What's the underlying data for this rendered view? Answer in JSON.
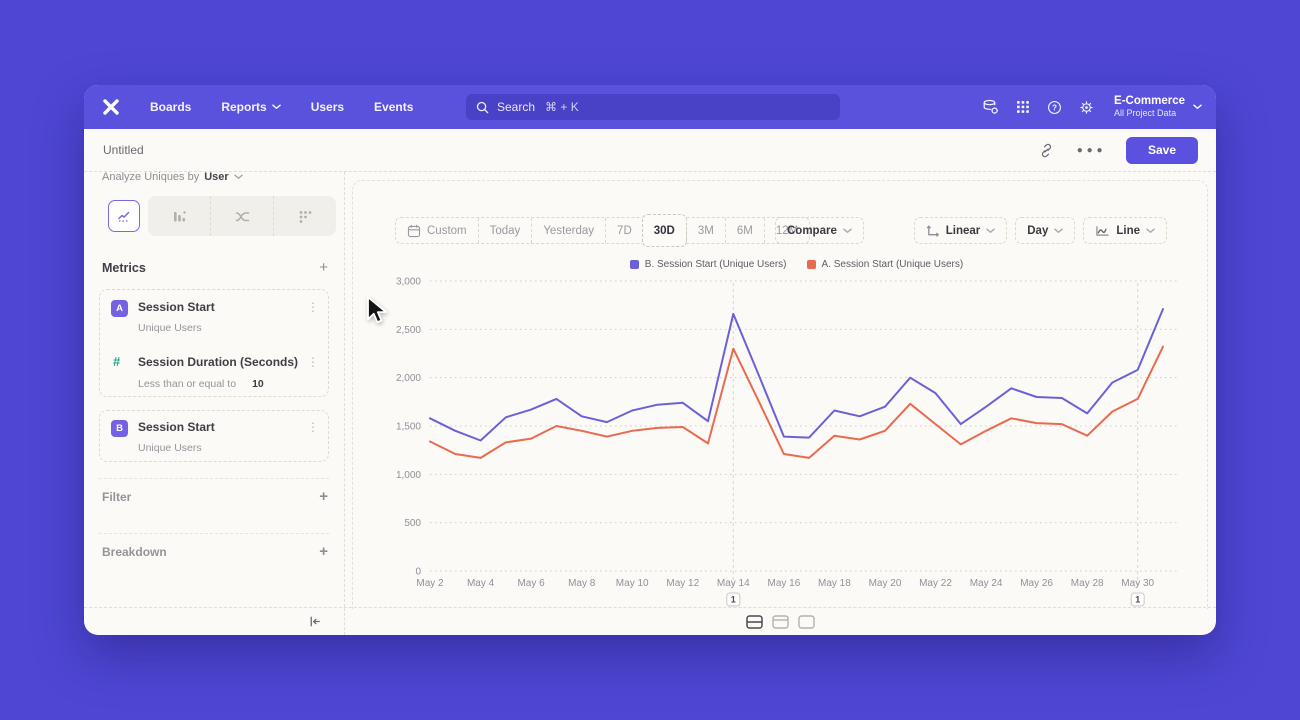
{
  "nav": {
    "items": [
      "Boards",
      "Reports",
      "Users",
      "Events"
    ],
    "search": {
      "label": "Search",
      "shortcut": "⌘ + K"
    },
    "project": {
      "name": "E-Commerce",
      "subtitle": "All Project Data"
    }
  },
  "titlebar": {
    "title": "Untitled",
    "save_label": "Save"
  },
  "sidebar": {
    "analyze_prefix": "Analyze Uniques by",
    "analyze_value": "User",
    "metrics_header": "Metrics",
    "metrics": [
      {
        "badge": "A",
        "title": "Session Start",
        "subtitle": "Unique Users"
      },
      {
        "badge": "#",
        "title": "Session Duration (Seconds)",
        "subtitle_prefix": "Less than or equal to",
        "subtitle_value": "10"
      },
      {
        "badge": "B",
        "title": "Session Start",
        "subtitle": "Unique Users"
      }
    ],
    "filter_label": "Filter",
    "breakdown_label": "Breakdown"
  },
  "toolbar": {
    "ranges": [
      "Custom",
      "Today",
      "Yesterday",
      "7D",
      "30D",
      "3M",
      "6M",
      "12M"
    ],
    "selected_range": "30D",
    "compare_label": "Compare",
    "scale_label": "Linear",
    "interval_label": "Day",
    "charttype_label": "Line"
  },
  "chart_data": {
    "type": "line",
    "title": "",
    "xlabel": "",
    "ylabel": "",
    "x": [
      "May 2",
      "May 3",
      "May 4",
      "May 5",
      "May 6",
      "May 7",
      "May 8",
      "May 9",
      "May 10",
      "May 11",
      "May 12",
      "May 13",
      "May 14",
      "May 15",
      "May 16",
      "May 17",
      "May 18",
      "May 19",
      "May 20",
      "May 21",
      "May 22",
      "May 23",
      "May 24",
      "May 25",
      "May 26",
      "May 27",
      "May 28",
      "May 29",
      "May 30",
      "May 31"
    ],
    "x_tick_step": 2,
    "series": [
      {
        "name": "B. Session Start (Unique Users)",
        "color": "#6C60D8",
        "values": [
          1580,
          1450,
          1350,
          1590,
          1670,
          1780,
          1600,
          1540,
          1660,
          1720,
          1740,
          1550,
          2660,
          2030,
          1390,
          1380,
          1660,
          1600,
          1700,
          2000,
          1840,
          1520,
          1700,
          1890,
          1800,
          1790,
          1630,
          1950,
          2080,
          2710
        ]
      },
      {
        "name": "A. Session Start (Unique Users)",
        "color": "#E86A50",
        "values": [
          1340,
          1210,
          1170,
          1330,
          1370,
          1500,
          1450,
          1390,
          1450,
          1480,
          1490,
          1320,
          2300,
          1760,
          1210,
          1170,
          1400,
          1360,
          1450,
          1730,
          1520,
          1310,
          1450,
          1580,
          1530,
          1520,
          1400,
          1650,
          1780,
          2320
        ]
      }
    ],
    "ylim": [
      0,
      3000
    ],
    "yticks": [
      "0",
      "500",
      "1,000",
      "1,500",
      "2,000",
      "2,500",
      "3,000"
    ],
    "annotations": [
      {
        "x": "May 14",
        "label": "1"
      },
      {
        "x": "May 30",
        "label": "1"
      }
    ],
    "legend_position": "top-center",
    "grid": "horizontal-dotted"
  },
  "colors": {
    "page_background": "#4F47D4",
    "nav_background": "#5A52DC",
    "accent_purple": "#5B50E0",
    "metric_badge_purple": "#7462E2",
    "teal_operator": "#1FA58C"
  },
  "icon_names": [
    "mixpanel-logo",
    "search-icon",
    "data-settings-icon",
    "apps-grid-icon",
    "help-icon",
    "gear-icon",
    "chevron-down-icon",
    "link-icon",
    "more-icon",
    "calendar-icon",
    "linear-axis-icon",
    "line-chart-tab-icon",
    "bar-chart-tab-icon",
    "flows-tab-icon",
    "scatter-tab-icon",
    "plus-icon",
    "menu-dots-icon",
    "collapse-left-icon",
    "view-split-icon",
    "view-header-icon",
    "view-blank-icon",
    "cursor-arrow"
  ]
}
